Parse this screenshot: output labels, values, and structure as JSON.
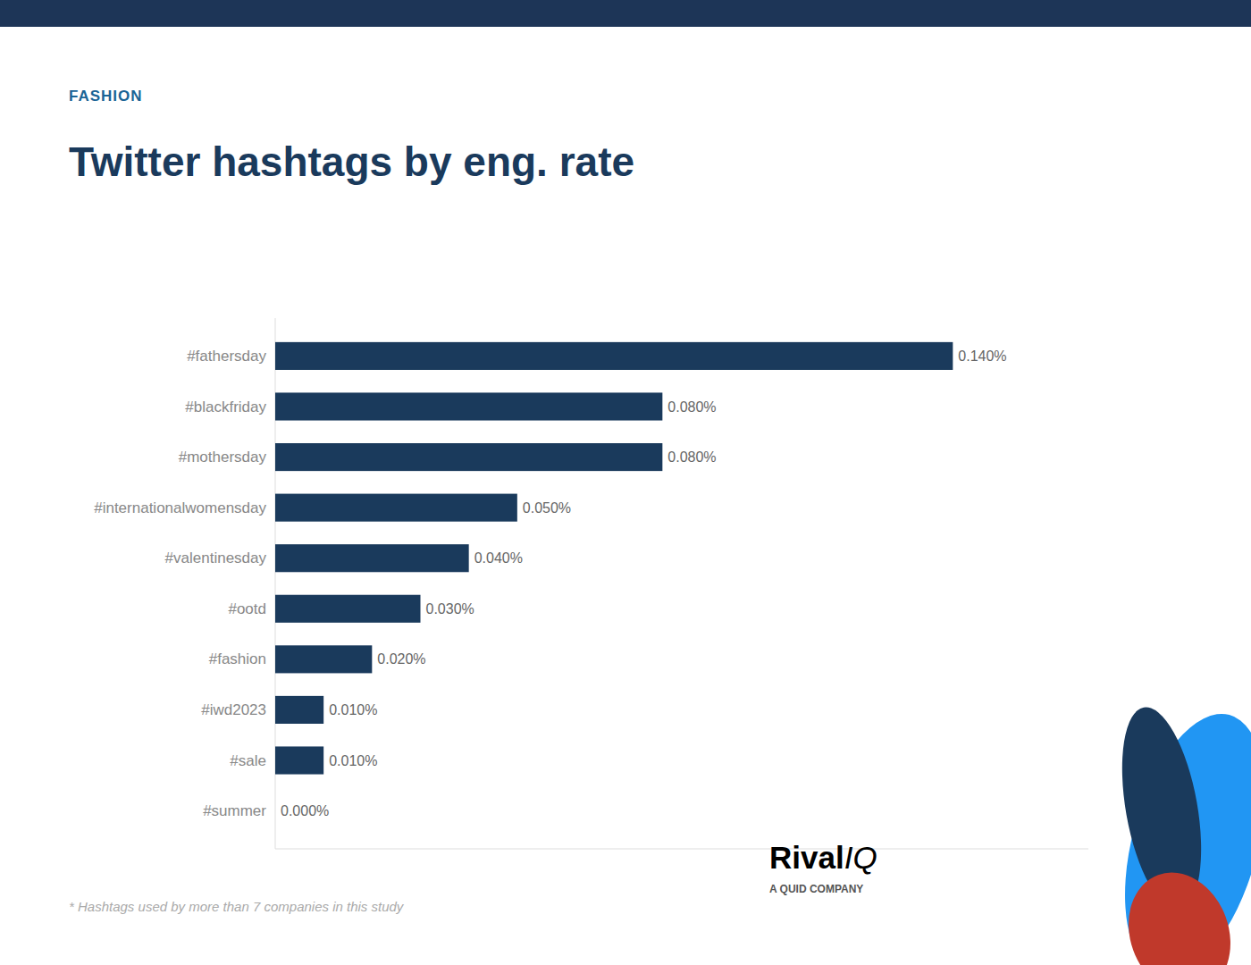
{
  "chart_data": {
    "type": "bar",
    "orientation": "horizontal",
    "title": "Twitter hashtags by eng. rate",
    "annotations": [
      "FASHION",
      "* Hashtags used by more than 7 companies in this study",
      "Rival",
      "IQ",
      "A QUID COMPANY"
    ],
    "categories": [
      "#fathersday",
      "#blackfriday",
      "#mothersday",
      "#internationalwomensday",
      "#valentinesday",
      "#ootd",
      "#fashion",
      "#iwd2023",
      "#sale",
      "#summer"
    ],
    "values": [
      0.14,
      0.08,
      0.08,
      0.05,
      0.04,
      0.03,
      0.02,
      0.01,
      0.01,
      0.0
    ],
    "value_labels": [
      "0.140%",
      "0.080%",
      "0.080%",
      "0.050%",
      "0.040%",
      "0.030%",
      "0.020%",
      "0.010%",
      "0.010%",
      "0.000%"
    ],
    "color": "#1a3a5c",
    "xlim": [
      0,
      0.168
    ],
    "data_labels": true,
    "tick_labels": "y",
    "grid": false
  }
}
